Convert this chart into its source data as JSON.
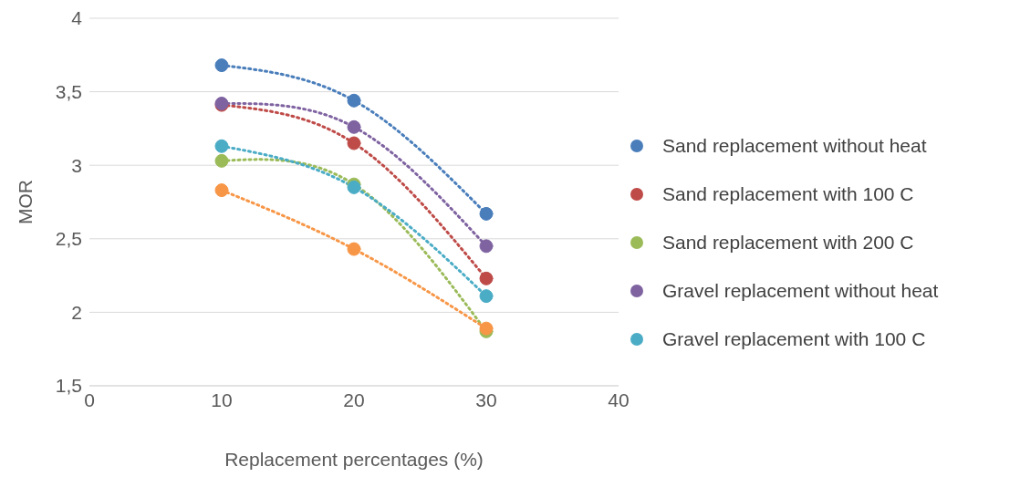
{
  "chart_data": {
    "type": "line",
    "xlabel": "Replacement percentages (%)",
    "ylabel": "MOR",
    "x": [
      10,
      20,
      30
    ],
    "series": [
      {
        "name": "Sand replacement without heat",
        "color": "#4a7ebb",
        "values": [
          3.68,
          3.44,
          2.67
        ]
      },
      {
        "name": "Sand replacement with 100 C",
        "color": "#be4b48",
        "values": [
          3.41,
          3.15,
          2.23
        ]
      },
      {
        "name": "Sand replacement with 200 C",
        "color": "#9bbb59",
        "values": [
          3.03,
          2.87,
          1.87
        ]
      },
      {
        "name": "Gravel replacement without heat",
        "color": "#7f63a1",
        "values": [
          3.42,
          3.26,
          2.45
        ]
      },
      {
        "name": "Gravel replacement with 100 C",
        "color": "#4bacc6",
        "values": [
          3.13,
          2.85,
          2.11
        ]
      },
      {
        "color": "#f79646",
        "values": [
          2.83,
          2.43,
          1.89
        ]
      }
    ],
    "xlim": [
      0,
      40
    ],
    "xticks": [
      0,
      10,
      20,
      30,
      40
    ],
    "ylim": [
      1.5,
      4
    ],
    "yticks": [
      {
        "value": 1.5,
        "label": "1,5"
      },
      2,
      {
        "value": 2.5,
        "label": "2,5"
      },
      3,
      {
        "value": 3.5,
        "label": "3,5"
      },
      4
    ],
    "grid": "y",
    "legend": "right",
    "marker": "circle",
    "line_style": "dotted"
  }
}
